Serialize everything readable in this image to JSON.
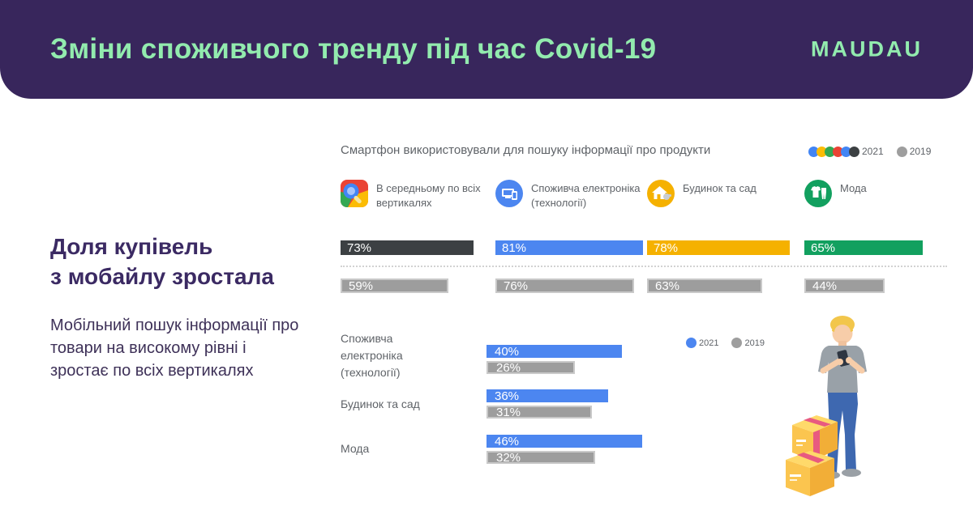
{
  "header": {
    "title": "Зміни споживчого тренду під час Covid-19",
    "logo_text": "MAUDAU",
    "bg_color": "#38265C",
    "accent_color": "#92EBAE"
  },
  "left_panel": {
    "heading_line1": "Доля купівель",
    "heading_line2": "з мобайлу зростала",
    "body": "Мобільний пошук інформації про товари на високому рівні і зростає по всіх вертикалях"
  },
  "colors": {
    "dark": "#3C4043",
    "blue": "#4C86F0",
    "yellow": "#F5B100",
    "green": "#12A05F",
    "red": "#EA4335",
    "gray_bar": "#9D9D9D",
    "gray_bar_border": "#C9C9C9",
    "text_gray": "#5F6368"
  },
  "chart_data": [
    {
      "id": "smartphone-search-by-vertical",
      "type": "bar",
      "title": "Смартфон використовували для пошуку інформації про продукти",
      "unit": "%",
      "legend": {
        "items": [
          {
            "label": "2021",
            "dot_colors": [
              "#4285F4",
              "#FBBC04",
              "#34A853",
              "#EA4335",
              "#4285F4",
              "#3C4043"
            ]
          },
          {
            "label": "2019",
            "dot_colors": [
              "#9E9E9E"
            ]
          }
        ]
      },
      "categories": [
        {
          "label": "В середньому по всіх вертикалях",
          "icon": "google-search-icon",
          "bar_color": "#3C4043"
        },
        {
          "label": "Споживча електроніка (технології)",
          "icon": "consumer-electronics-icon",
          "bar_color": "#4C86F0"
        },
        {
          "label": "Будинок та сад",
          "icon": "home-garden-icon",
          "bar_color": "#F5B100"
        },
        {
          "label": "Мода",
          "icon": "fashion-icon",
          "bar_color": "#12A05F"
        }
      ],
      "series": [
        {
          "name": "2021",
          "values": [
            73,
            81,
            78,
            65
          ]
        },
        {
          "name": "2019",
          "values": [
            59,
            76,
            63,
            44
          ],
          "bar_color": "#9D9D9D"
        }
      ]
    },
    {
      "id": "mobile-purchase-share",
      "type": "bar",
      "unit": "%",
      "legend": {
        "items": [
          {
            "label": "2021",
            "dot_colors": [
              "#4C86F0"
            ]
          },
          {
            "label": "2019",
            "dot_colors": [
              "#9E9E9E"
            ]
          }
        ]
      },
      "categories": [
        "Споживча електроніка (технології)",
        "Будинок та сад",
        "Мода"
      ],
      "series": [
        {
          "name": "2021",
          "values": [
            40,
            36,
            46
          ],
          "bar_color": "#4C86F0"
        },
        {
          "name": "2019",
          "values": [
            26,
            31,
            32
          ],
          "bar_color": "#9D9D9D"
        }
      ]
    }
  ]
}
